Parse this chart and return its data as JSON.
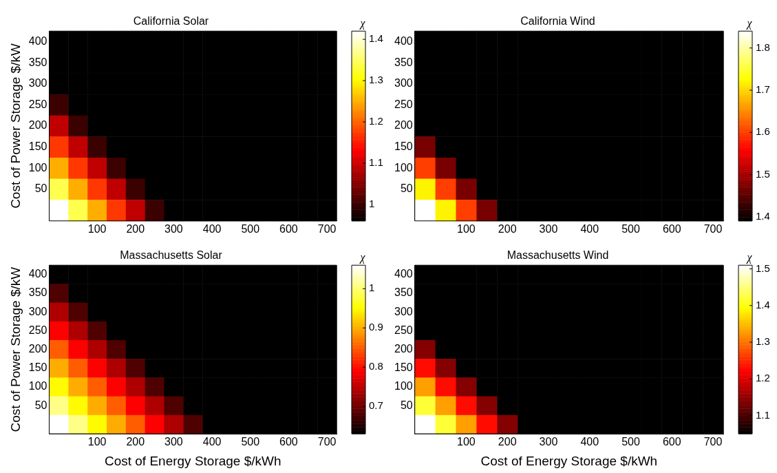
{
  "chart_data": [
    {
      "type": "heatmap",
      "title": "California Solar",
      "ylabel": "Cost of Power Storage $/kW",
      "clabel": "χ",
      "clim": [
        0.96,
        1.42
      ],
      "cticks": [
        1,
        1.1,
        1.2,
        1.3,
        1.4
      ],
      "categories": [
        null,
        null,
        "100",
        null,
        "200",
        null,
        "300",
        null,
        "400",
        null,
        "500",
        null,
        "600",
        null,
        "700"
      ],
      "y_categories": [
        "400",
        "350",
        "300",
        "250",
        "200",
        "150",
        "100",
        "50",
        null
      ],
      "cells": [
        [
          0.96,
          0.96,
          0.96,
          0.96,
          0.96,
          0.96,
          0.96,
          0.96,
          0.96,
          0.96,
          0.96,
          0.96,
          0.96,
          0.96,
          0.96
        ],
        [
          0.96,
          0.96,
          0.96,
          0.96,
          0.96,
          0.96,
          0.96,
          0.96,
          0.96,
          0.96,
          0.96,
          0.96,
          0.96,
          0.96,
          0.96
        ],
        [
          0.96,
          0.96,
          0.96,
          0.96,
          0.96,
          0.96,
          0.96,
          0.96,
          0.96,
          0.96,
          0.96,
          0.96,
          0.96,
          0.96,
          0.96
        ],
        [
          1.0,
          0.96,
          0.96,
          0.96,
          0.96,
          0.96,
          0.96,
          0.96,
          0.96,
          0.96,
          0.96,
          0.96,
          0.96,
          0.96,
          0.96
        ],
        [
          1.09,
          1.0,
          0.96,
          0.96,
          0.96,
          0.96,
          0.96,
          0.96,
          0.96,
          0.96,
          0.96,
          0.96,
          0.96,
          0.96,
          0.96
        ],
        [
          1.17,
          1.09,
          1.0,
          0.96,
          0.96,
          0.96,
          0.96,
          0.96,
          0.96,
          0.96,
          0.96,
          0.96,
          0.96,
          0.96,
          0.96
        ],
        [
          1.25,
          1.17,
          1.09,
          1.0,
          0.96,
          0.96,
          0.96,
          0.96,
          0.96,
          0.96,
          0.96,
          0.96,
          0.96,
          0.96,
          0.96
        ],
        [
          1.34,
          1.25,
          1.17,
          1.09,
          1.0,
          0.96,
          0.96,
          0.96,
          0.96,
          0.96,
          0.96,
          0.96,
          0.96,
          0.96,
          0.96
        ],
        [
          1.42,
          1.34,
          1.25,
          1.17,
          1.09,
          1.0,
          0.96,
          0.96,
          0.96,
          0.96,
          0.96,
          0.96,
          0.96,
          0.96,
          0.96
        ]
      ]
    },
    {
      "type": "heatmap",
      "title": "California Wind",
      "clabel": "χ",
      "clim": [
        1.39,
        1.84
      ],
      "cticks": [
        1.4,
        1.5,
        1.6,
        1.7,
        1.8
      ],
      "categories": [
        null,
        null,
        "100",
        null,
        "200",
        null,
        "300",
        null,
        "400",
        null,
        "500",
        null,
        "600",
        null,
        "700"
      ],
      "y_categories": [
        "400",
        "350",
        "300",
        "250",
        "200",
        "150",
        "100",
        "50",
        null
      ],
      "cells": [
        [
          1.39,
          1.39,
          1.39,
          1.39,
          1.39,
          1.39,
          1.39,
          1.39,
          1.39,
          1.39,
          1.39,
          1.39,
          1.39,
          1.39,
          1.39
        ],
        [
          1.39,
          1.39,
          1.39,
          1.39,
          1.39,
          1.39,
          1.39,
          1.39,
          1.39,
          1.39,
          1.39,
          1.39,
          1.39,
          1.39,
          1.39
        ],
        [
          1.39,
          1.39,
          1.39,
          1.39,
          1.39,
          1.39,
          1.39,
          1.39,
          1.39,
          1.39,
          1.39,
          1.39,
          1.39,
          1.39,
          1.39
        ],
        [
          1.39,
          1.39,
          1.39,
          1.39,
          1.39,
          1.39,
          1.39,
          1.39,
          1.39,
          1.39,
          1.39,
          1.39,
          1.39,
          1.39,
          1.39
        ],
        [
          1.39,
          1.39,
          1.39,
          1.39,
          1.39,
          1.39,
          1.39,
          1.39,
          1.39,
          1.39,
          1.39,
          1.39,
          1.39,
          1.39,
          1.39
        ],
        [
          1.47,
          1.39,
          1.39,
          1.39,
          1.39,
          1.39,
          1.39,
          1.39,
          1.39,
          1.39,
          1.39,
          1.39,
          1.39,
          1.39,
          1.39
        ],
        [
          1.6,
          1.47,
          1.39,
          1.39,
          1.39,
          1.39,
          1.39,
          1.39,
          1.39,
          1.39,
          1.39,
          1.39,
          1.39,
          1.39,
          1.39
        ],
        [
          1.72,
          1.6,
          1.47,
          1.39,
          1.39,
          1.39,
          1.39,
          1.39,
          1.39,
          1.39,
          1.39,
          1.39,
          1.39,
          1.39,
          1.39
        ],
        [
          1.84,
          1.72,
          1.6,
          1.47,
          1.39,
          1.39,
          1.39,
          1.39,
          1.39,
          1.39,
          1.39,
          1.39,
          1.39,
          1.39,
          1.39
        ]
      ]
    },
    {
      "type": "heatmap",
      "title": "Massachusetts Solar",
      "xlabel": "Cost of Energy Storage $/kWh",
      "ylabel": "Cost of Power Storage $/kW",
      "clabel": "χ",
      "clim": [
        0.63,
        1.06
      ],
      "cticks": [
        0.7,
        0.8,
        0.9,
        1
      ],
      "categories": [
        null,
        null,
        "100",
        null,
        "200",
        null,
        "300",
        null,
        "400",
        null,
        "500",
        null,
        "600",
        null,
        "700"
      ],
      "y_categories": [
        "400",
        "350",
        "300",
        "250",
        "200",
        "150",
        "100",
        "50",
        null
      ],
      "cells": [
        [
          0.63,
          0.63,
          0.63,
          0.63,
          0.63,
          0.63,
          0.63,
          0.63,
          0.63,
          0.63,
          0.63,
          0.63,
          0.63,
          0.63,
          0.63
        ],
        [
          0.68,
          0.63,
          0.63,
          0.63,
          0.63,
          0.63,
          0.63,
          0.63,
          0.63,
          0.63,
          0.63,
          0.63,
          0.63,
          0.63,
          0.63
        ],
        [
          0.74,
          0.68,
          0.63,
          0.63,
          0.63,
          0.63,
          0.63,
          0.63,
          0.63,
          0.63,
          0.63,
          0.63,
          0.63,
          0.63,
          0.63
        ],
        [
          0.79,
          0.74,
          0.68,
          0.63,
          0.63,
          0.63,
          0.63,
          0.63,
          0.63,
          0.63,
          0.63,
          0.63,
          0.63,
          0.63,
          0.63
        ],
        [
          0.85,
          0.79,
          0.74,
          0.68,
          0.63,
          0.63,
          0.63,
          0.63,
          0.63,
          0.63,
          0.63,
          0.63,
          0.63,
          0.63,
          0.63
        ],
        [
          0.9,
          0.85,
          0.79,
          0.74,
          0.68,
          0.63,
          0.63,
          0.63,
          0.63,
          0.63,
          0.63,
          0.63,
          0.63,
          0.63,
          0.63
        ],
        [
          0.95,
          0.9,
          0.85,
          0.79,
          0.74,
          0.68,
          0.63,
          0.63,
          0.63,
          0.63,
          0.63,
          0.63,
          0.63,
          0.63,
          0.63
        ],
        [
          1.01,
          0.95,
          0.9,
          0.85,
          0.79,
          0.74,
          0.68,
          0.63,
          0.63,
          0.63,
          0.63,
          0.63,
          0.63,
          0.63,
          0.63
        ],
        [
          1.06,
          1.01,
          0.95,
          0.9,
          0.85,
          0.79,
          0.74,
          0.68,
          0.63,
          0.63,
          0.63,
          0.63,
          0.63,
          0.63,
          0.63
        ]
      ]
    },
    {
      "type": "heatmap",
      "title": "Massachusetts Wind",
      "xlabel": "Cost of Energy Storage $/kWh",
      "clabel": "χ",
      "clim": [
        1.05,
        1.51
      ],
      "cticks": [
        1.1,
        1.2,
        1.3,
        1.4,
        1.5
      ],
      "categories": [
        null,
        null,
        "100",
        null,
        "200",
        null,
        "300",
        null,
        "400",
        null,
        "500",
        null,
        "600",
        null,
        "700"
      ],
      "y_categories": [
        "400",
        "350",
        "300",
        "250",
        "200",
        "150",
        "100",
        "50",
        null
      ],
      "cells": [
        [
          1.05,
          1.05,
          1.05,
          1.05,
          1.05,
          1.05,
          1.05,
          1.05,
          1.05,
          1.05,
          1.05,
          1.05,
          1.05,
          1.05,
          1.05
        ],
        [
          1.05,
          1.05,
          1.05,
          1.05,
          1.05,
          1.05,
          1.05,
          1.05,
          1.05,
          1.05,
          1.05,
          1.05,
          1.05,
          1.05,
          1.05
        ],
        [
          1.05,
          1.05,
          1.05,
          1.05,
          1.05,
          1.05,
          1.05,
          1.05,
          1.05,
          1.05,
          1.05,
          1.05,
          1.05,
          1.05,
          1.05
        ],
        [
          1.05,
          1.05,
          1.05,
          1.05,
          1.05,
          1.05,
          1.05,
          1.05,
          1.05,
          1.05,
          1.05,
          1.05,
          1.05,
          1.05,
          1.05
        ],
        [
          1.14,
          1.05,
          1.05,
          1.05,
          1.05,
          1.05,
          1.05,
          1.05,
          1.05,
          1.05,
          1.05,
          1.05,
          1.05,
          1.05,
          1.05
        ],
        [
          1.23,
          1.14,
          1.05,
          1.05,
          1.05,
          1.05,
          1.05,
          1.05,
          1.05,
          1.05,
          1.05,
          1.05,
          1.05,
          1.05,
          1.05
        ],
        [
          1.33,
          1.23,
          1.14,
          1.05,
          1.05,
          1.05,
          1.05,
          1.05,
          1.05,
          1.05,
          1.05,
          1.05,
          1.05,
          1.05,
          1.05
        ],
        [
          1.42,
          1.33,
          1.23,
          1.14,
          1.05,
          1.05,
          1.05,
          1.05,
          1.05,
          1.05,
          1.05,
          1.05,
          1.05,
          1.05,
          1.05
        ],
        [
          1.51,
          1.42,
          1.33,
          1.23,
          1.14,
          1.05,
          1.05,
          1.05,
          1.05,
          1.05,
          1.05,
          1.05,
          1.05,
          1.05,
          1.05
        ]
      ]
    }
  ]
}
